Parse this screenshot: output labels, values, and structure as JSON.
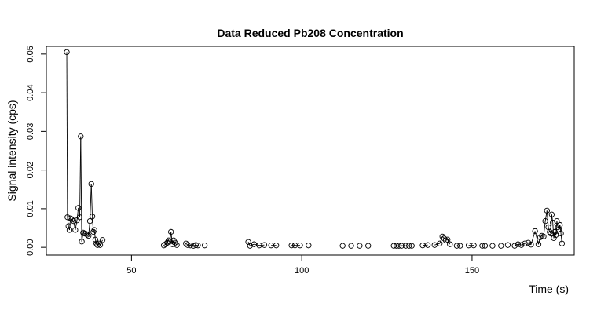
{
  "chart_data": {
    "type": "scatter",
    "title": "Data Reduced Pb208 Concentration",
    "xlabel": "Time (s)",
    "ylabel": "Signal intensity (cps)",
    "xlim": [
      25,
      180
    ],
    "ylim": [
      -0.002,
      0.052
    ],
    "xticks": [
      50,
      100,
      150
    ],
    "yticks": [
      0.0,
      0.01,
      0.02,
      0.03,
      0.04,
      0.05
    ],
    "ytick_labels": [
      "0.00",
      "0.01",
      "0.02",
      "0.03",
      "0.04",
      "0.05"
    ],
    "grid": false,
    "legend": "none",
    "x": [
      31.0,
      31.2,
      31.5,
      31.8,
      32.1,
      32.5,
      33.0,
      33.5,
      34.0,
      34.4,
      34.8,
      35.1,
      35.4,
      35.8,
      36.2,
      36.6,
      37.0,
      37.4,
      37.8,
      38.2,
      38.5,
      38.8,
      39.1,
      39.4,
      39.7,
      40.0,
      40.4,
      40.8,
      41.5,
      59.5,
      60.0,
      60.5,
      60.9,
      61.3,
      61.6,
      62.0,
      62.4,
      62.8,
      63.3,
      66.0,
      66.5,
      67.3,
      68.2,
      68.9,
      69.5,
      71.5,
      84.3,
      84.8,
      86.0,
      87.5,
      89.0,
      91.0,
      92.5,
      97.0,
      98.0,
      99.5,
      102.0,
      112.0,
      114.5,
      117.0,
      119.5,
      127.0,
      127.8,
      128.5,
      129.3,
      130.5,
      131.5,
      132.3,
      135.5,
      137.0,
      139.0,
      140.5,
      141.3,
      141.8,
      142.3,
      142.8,
      143.5,
      145.5,
      146.5,
      149.0,
      150.5,
      153.0,
      153.8,
      156.0,
      158.5,
      160.5,
      162.5,
      163.5,
      164.5,
      165.5,
      166.5,
      167.3,
      168.5,
      169.5,
      170.0,
      170.5,
      171.0,
      171.5,
      172.0,
      172.4,
      172.8,
      173.1,
      173.4,
      173.7,
      174.0,
      174.3,
      174.6,
      174.9,
      175.2,
      175.5,
      175.8,
      176.1,
      176.4
    ],
    "y": [
      0.0505,
      0.0078,
      0.0055,
      0.0045,
      0.0075,
      0.0072,
      0.0068,
      0.0045,
      0.007,
      0.0102,
      0.0078,
      0.0287,
      0.0015,
      0.0038,
      0.0036,
      0.0035,
      0.0033,
      0.003,
      0.0068,
      0.0164,
      0.008,
      0.004,
      0.0045,
      0.002,
      0.001,
      0.0006,
      0.001,
      0.0006,
      0.0019,
      0.0005,
      0.0008,
      0.0012,
      0.0018,
      0.0015,
      0.004,
      0.0008,
      0.0018,
      0.0012,
      0.0006,
      0.001,
      0.0006,
      0.0005,
      0.0004,
      0.0006,
      0.0005,
      0.0005,
      0.0014,
      0.0004,
      0.0008,
      0.0005,
      0.0006,
      0.0005,
      0.0005,
      0.0005,
      0.0005,
      0.0005,
      0.0005,
      0.0004,
      0.0004,
      0.0004,
      0.0004,
      0.0004,
      0.0004,
      0.0004,
      0.0004,
      0.0004,
      0.0004,
      0.0004,
      0.0005,
      0.0006,
      0.0006,
      0.001,
      0.0028,
      0.0023,
      0.0018,
      0.002,
      0.0008,
      0.0004,
      0.0004,
      0.0005,
      0.0005,
      0.0004,
      0.0004,
      0.0004,
      0.0004,
      0.0006,
      0.0004,
      0.0008,
      0.0006,
      0.001,
      0.0012,
      0.0007,
      0.0042,
      0.0008,
      0.0026,
      0.003,
      0.0028,
      0.0068,
      0.0095,
      0.0052,
      0.004,
      0.0036,
      0.0085,
      0.0064,
      0.0024,
      0.004,
      0.0032,
      0.0068,
      0.0052,
      0.0046,
      0.0058,
      0.0036,
      0.001
    ]
  }
}
